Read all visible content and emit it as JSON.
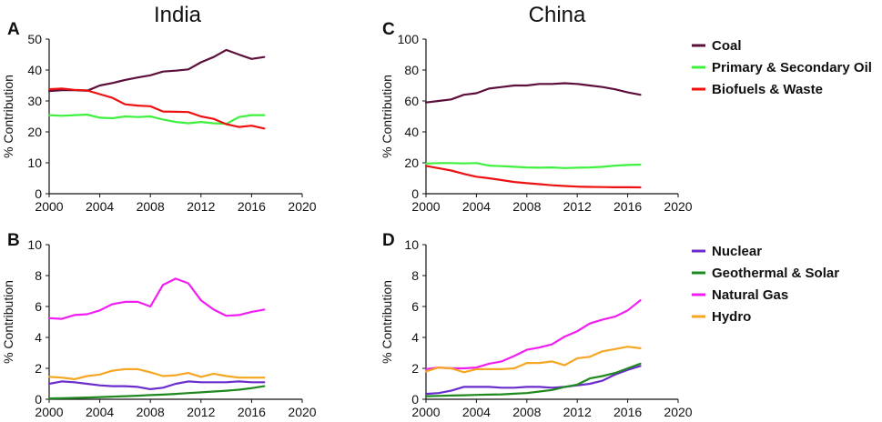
{
  "figure": {
    "col_titles": [
      "India",
      "China"
    ]
  },
  "chart_data": [
    {
      "id": "A",
      "type": "line",
      "letter": "A",
      "xlabel": "",
      "ylabel": "% Contribution",
      "xlim": [
        2000,
        2020
      ],
      "ylim": [
        0,
        50
      ],
      "xticks": [
        2000,
        2004,
        2008,
        2012,
        2016,
        2020
      ],
      "yticks": [
        0,
        10,
        20,
        30,
        40,
        50
      ],
      "x": [
        2000,
        2001,
        2002,
        2003,
        2004,
        2005,
        2006,
        2007,
        2008,
        2009,
        2010,
        2011,
        2012,
        2013,
        2014,
        2015,
        2016,
        2017
      ],
      "series": [
        {
          "name": "Coal",
          "color": "#5c0f3a",
          "values": [
            33.2,
            33.5,
            33.5,
            33.3,
            35.0,
            35.8,
            36.8,
            37.6,
            38.3,
            39.5,
            39.8,
            40.2,
            42.5,
            44.2,
            46.5,
            45.0,
            43.6,
            44.2
          ]
        },
        {
          "name": "Primary & Secondary Oil",
          "color": "#3ff03f",
          "values": [
            25.4,
            25.2,
            25.4,
            25.6,
            24.6,
            24.4,
            25.0,
            24.8,
            25.0,
            24.0,
            23.2,
            22.8,
            23.2,
            22.8,
            22.6,
            24.8,
            25.4,
            25.4
          ]
        },
        {
          "name": "Biofuels & Waste",
          "color": "#ee1111",
          "values": [
            33.8,
            34.0,
            33.6,
            33.4,
            32.2,
            31.0,
            28.9,
            28.5,
            28.3,
            26.6,
            26.5,
            26.4,
            25.0,
            24.2,
            22.5,
            21.6,
            22.0,
            21.1
          ]
        }
      ]
    },
    {
      "id": "B",
      "type": "line",
      "letter": "B",
      "xlabel": "",
      "ylabel": "% Contribution",
      "xlim": [
        2000,
        2020
      ],
      "ylim": [
        0,
        10
      ],
      "xticks": [
        2000,
        2004,
        2008,
        2012,
        2016,
        2020
      ],
      "yticks": [
        0,
        2,
        4,
        6,
        8,
        10
      ],
      "x": [
        2000,
        2001,
        2002,
        2003,
        2004,
        2005,
        2006,
        2007,
        2008,
        2009,
        2010,
        2011,
        2012,
        2013,
        2014,
        2015,
        2016,
        2017
      ],
      "series": [
        {
          "name": "Nuclear",
          "color": "#6a2dcc",
          "values": [
            1.0,
            1.15,
            1.1,
            1.0,
            0.9,
            0.85,
            0.85,
            0.8,
            0.65,
            0.75,
            1.0,
            1.15,
            1.1,
            1.1,
            1.1,
            1.15,
            1.1,
            1.1
          ]
        },
        {
          "name": "Geothermal & Solar",
          "color": "#1e8a1e",
          "values": [
            0.05,
            0.07,
            0.09,
            0.11,
            0.14,
            0.17,
            0.2,
            0.23,
            0.27,
            0.3,
            0.35,
            0.4,
            0.45,
            0.5,
            0.55,
            0.62,
            0.72,
            0.85
          ]
        },
        {
          "name": "Natural Gas",
          "color": "#f01ef0",
          "values": [
            5.25,
            5.2,
            5.45,
            5.5,
            5.75,
            6.15,
            6.3,
            6.3,
            6.0,
            7.4,
            7.8,
            7.5,
            6.4,
            5.8,
            5.4,
            5.45,
            5.65,
            5.8
          ]
        },
        {
          "name": "Hydro",
          "color": "#f5a623",
          "values": [
            1.45,
            1.4,
            1.3,
            1.5,
            1.6,
            1.85,
            1.95,
            1.95,
            1.75,
            1.5,
            1.55,
            1.7,
            1.45,
            1.65,
            1.5,
            1.4,
            1.4,
            1.4
          ]
        }
      ]
    },
    {
      "id": "C",
      "type": "line",
      "letter": "C",
      "xlabel": "",
      "ylabel": "% Contribution",
      "xlim": [
        2000,
        2020
      ],
      "ylim": [
        0,
        100
      ],
      "xticks": [
        2000,
        2004,
        2008,
        2012,
        2016,
        2020
      ],
      "yticks": [
        0,
        20,
        40,
        60,
        80,
        100
      ],
      "x": [
        2000,
        2001,
        2002,
        2003,
        2004,
        2005,
        2006,
        2007,
        2008,
        2009,
        2010,
        2011,
        2012,
        2013,
        2014,
        2015,
        2016,
        2017
      ],
      "legend": [
        "Coal",
        "Primary & Secondary Oil",
        "Biofuels & Waste"
      ],
      "series": [
        {
          "name": "Coal",
          "color": "#5c0f3a",
          "values": [
            59,
            60,
            61,
            64,
            65,
            68,
            69,
            70,
            70,
            71,
            71,
            71.5,
            71,
            70,
            69,
            67.5,
            65.5,
            64
          ]
        },
        {
          "name": "Primary & Secondary Oil",
          "color": "#3ff03f",
          "values": [
            19.5,
            19.8,
            19.8,
            19.6,
            19.8,
            18.2,
            17.8,
            17.4,
            17.0,
            16.8,
            17.0,
            16.6,
            16.8,
            17.0,
            17.4,
            18.2,
            18.6,
            18.8
          ]
        },
        {
          "name": "Biofuels & Waste",
          "color": "#ee1111",
          "values": [
            18.0,
            16.5,
            15.0,
            12.8,
            11.0,
            10.0,
            8.8,
            7.6,
            6.8,
            6.2,
            5.5,
            5.0,
            4.6,
            4.4,
            4.3,
            4.2,
            4.2,
            4.1
          ]
        }
      ]
    },
    {
      "id": "D",
      "type": "line",
      "letter": "D",
      "xlabel": "",
      "ylabel": "% Contribution",
      "xlim": [
        2000,
        2020
      ],
      "ylim": [
        0,
        10
      ],
      "xticks": [
        2000,
        2004,
        2008,
        2012,
        2016,
        2020
      ],
      "yticks": [
        0,
        2,
        4,
        6,
        8,
        10
      ],
      "x": [
        2000,
        2001,
        2002,
        2003,
        2004,
        2005,
        2006,
        2007,
        2008,
        2009,
        2010,
        2011,
        2012,
        2013,
        2014,
        2015,
        2016,
        2017
      ],
      "legend": [
        "Nuclear",
        "Geothermal & Solar",
        "Natural Gas",
        "Hydro"
      ],
      "series": [
        {
          "name": "Nuclear",
          "color": "#6a2dcc",
          "values": [
            0.35,
            0.4,
            0.55,
            0.8,
            0.8,
            0.8,
            0.75,
            0.75,
            0.8,
            0.8,
            0.75,
            0.8,
            0.9,
            1.0,
            1.2,
            1.6,
            1.9,
            2.15
          ]
        },
        {
          "name": "Geothermal & Solar",
          "color": "#1e8a1e",
          "values": [
            0.2,
            0.22,
            0.24,
            0.26,
            0.28,
            0.3,
            0.32,
            0.36,
            0.4,
            0.5,
            0.6,
            0.8,
            0.95,
            1.35,
            1.5,
            1.7,
            2.0,
            2.3
          ]
        },
        {
          "name": "Natural Gas",
          "color": "#f01ef0",
          "values": [
            1.95,
            2.05,
            2.0,
            2.0,
            2.05,
            2.3,
            2.45,
            2.8,
            3.2,
            3.35,
            3.55,
            4.05,
            4.4,
            4.9,
            5.15,
            5.35,
            5.75,
            6.4
          ]
        },
        {
          "name": "Hydro",
          "color": "#f5a623",
          "values": [
            1.8,
            2.05,
            2.0,
            1.75,
            1.95,
            1.95,
            1.95,
            2.0,
            2.35,
            2.35,
            2.45,
            2.2,
            2.65,
            2.75,
            3.1,
            3.25,
            3.4,
            3.3
          ]
        }
      ]
    }
  ]
}
